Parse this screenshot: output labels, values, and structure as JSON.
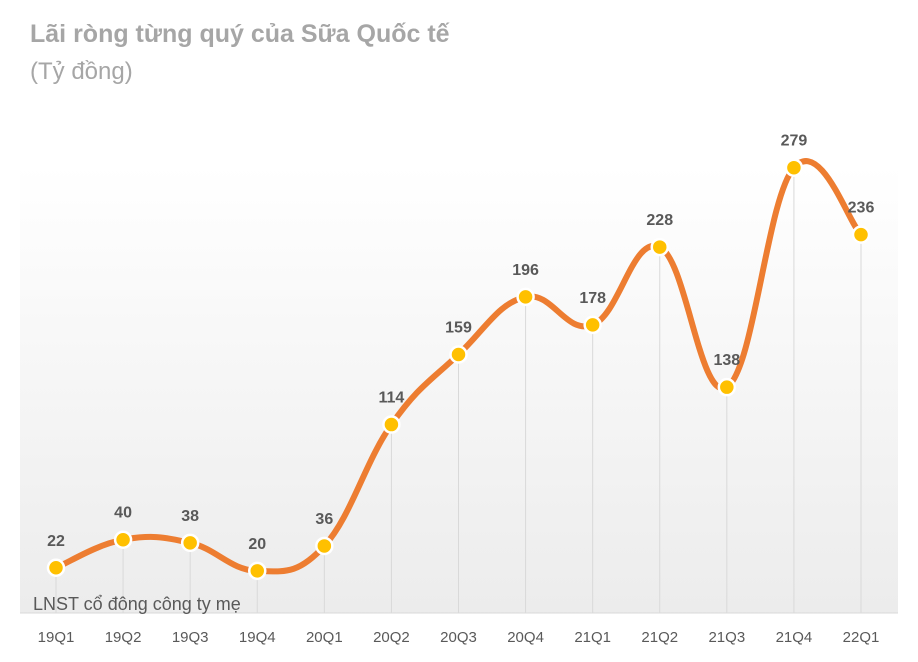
{
  "chart_data": {
    "type": "line",
    "title": "Lãi ròng từng quý của Sữa Quốc tế",
    "subtitle": "(Tỷ đồng)",
    "categories": [
      "19Q1",
      "19Q2",
      "19Q3",
      "19Q4",
      "20Q1",
      "20Q2",
      "20Q3",
      "20Q4",
      "21Q1",
      "21Q2",
      "21Q3",
      "21Q4",
      "22Q1"
    ],
    "series": [
      {
        "name": "LNST cổ đông công ty mẹ",
        "values": [
          22,
          40,
          38,
          20,
          36,
          114,
          159,
          196,
          178,
          228,
          138,
          279,
          236
        ],
        "line_color": "#ed7d31",
        "marker_color": "#ffc000"
      }
    ],
    "data_labels": true,
    "smoothed": true,
    "grid": false,
    "drop_lines": true,
    "legend": "bottom-left",
    "ylim": [
      0,
      300
    ]
  }
}
